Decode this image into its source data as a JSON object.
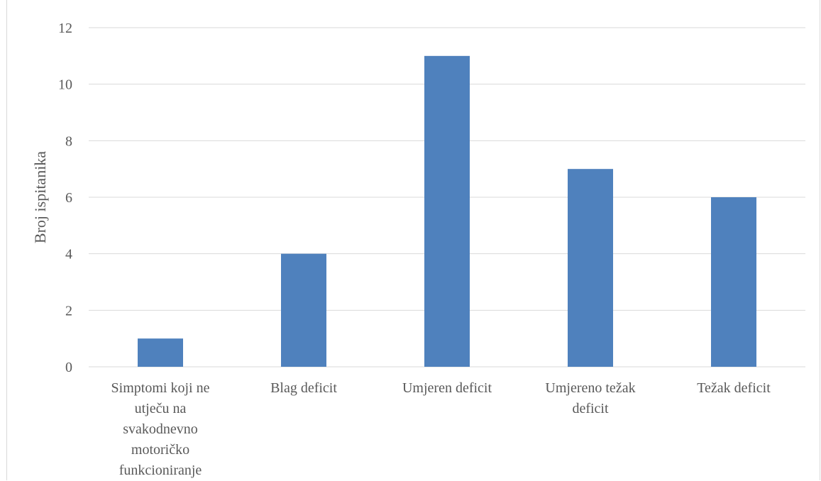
{
  "chart_data": {
    "type": "bar",
    "categories": [
      "Simptomi koji ne utječu na svakodnevno motoričko funkcioniranje",
      "Blag deficit",
      "Umjeren deficit",
      "Umjereno težak deficit",
      "Težak deficit"
    ],
    "category_lines": [
      [
        "Simptomi koji ne",
        "utječu na",
        "svakodnevno",
        "motoričko",
        "funkcioniranje"
      ],
      [
        "Blag deficit"
      ],
      [
        "Umjeren deficit"
      ],
      [
        "Umjereno težak",
        "deficit"
      ],
      [
        "Težak deficit"
      ]
    ],
    "values": [
      1,
      4,
      11,
      7,
      6
    ],
    "title": "",
    "xlabel": "",
    "ylabel": "Broj ispitanika",
    "ylim": [
      0,
      12
    ],
    "yticks": [
      0,
      2,
      4,
      6,
      8,
      10,
      12
    ],
    "grid": true,
    "legend": "none",
    "colors": {
      "bar": "#4f81bd",
      "grid": "#d9d9d9",
      "text": "#595959"
    }
  }
}
